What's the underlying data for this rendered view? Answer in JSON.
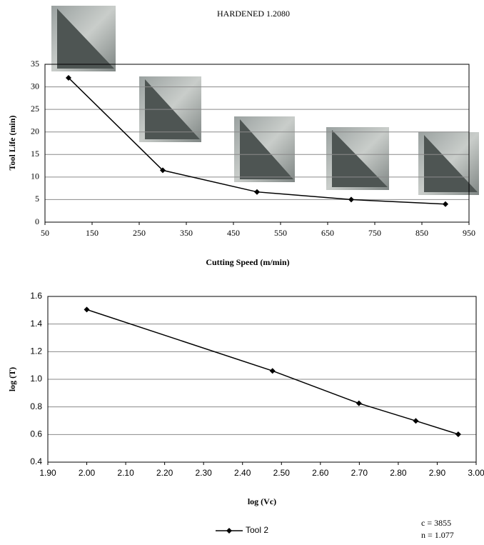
{
  "chart_data": [
    {
      "type": "line",
      "title": "HARDENED 1.2080",
      "x_label": "Cutting Speed (m/min)",
      "y_label": "Tool Life (min)",
      "x": [
        100,
        300,
        500,
        700,
        900
      ],
      "series": [
        {
          "color": "#000000",
          "values": [
            32,
            11.5,
            6.7,
            5,
            4
          ]
        }
      ],
      "xlim": [
        50,
        950
      ],
      "xticks": [
        50,
        150,
        250,
        350,
        450,
        550,
        650,
        750,
        850,
        950
      ],
      "ylim": [
        0,
        35
      ],
      "yticks": [
        0,
        5,
        10,
        15,
        20,
        25,
        30,
        35
      ],
      "grid": true
    },
    {
      "type": "line",
      "x_label": "log (Vc)",
      "y_label": "log (T)",
      "x": [
        2.0,
        2.477,
        2.699,
        2.845,
        2.954
      ],
      "series": [
        {
          "name": "Tool 2",
          "color": "#000000",
          "values": [
            1.505,
            1.061,
            0.826,
            0.699,
            0.602
          ]
        }
      ],
      "xlim": [
        1.9,
        3.0
      ],
      "xticks": [
        {
          "value": 1.9,
          "label": "1.90"
        },
        {
          "value": 2.0,
          "label": "2.00"
        },
        {
          "value": 2.1,
          "label": "2.10"
        },
        {
          "value": 2.2,
          "label": "2.20"
        },
        {
          "value": 2.3,
          "label": "2.30"
        },
        {
          "value": 2.4,
          "label": "2.40"
        },
        {
          "value": 2.5,
          "label": "2.50"
        },
        {
          "value": 2.6,
          "label": "2.60"
        },
        {
          "value": 2.7,
          "label": "2.70"
        },
        {
          "value": 2.8,
          "label": "2.80"
        },
        {
          "value": 2.9,
          "label": "2.90"
        },
        {
          "value": 3.0,
          "label": "3.00"
        }
      ],
      "ylim": [
        0.4,
        1.6
      ],
      "yticks": [
        0.4,
        0.6,
        0.8,
        {
          "value": 1.0,
          "label": "1.0"
        },
        1.2,
        1.4,
        1.6
      ],
      "grid": true,
      "annotations": [
        "c = 3855",
        "n = 1.077"
      ]
    }
  ]
}
